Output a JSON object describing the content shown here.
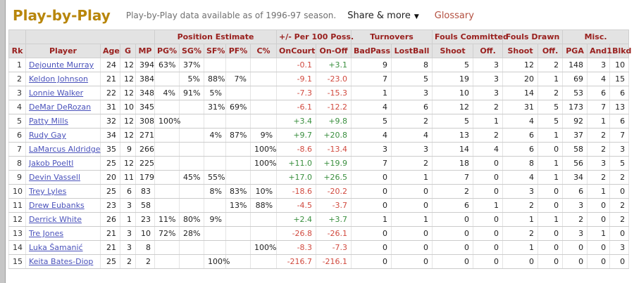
{
  "page": {
    "title": "Play-by-Play",
    "subtitle": "Play-by-Play data available as of 1996-97 season.",
    "share_label": "Share & more",
    "share_caret": "▼",
    "glossary_label": "Glossary"
  },
  "colors": {
    "title_gold": "#B8860B",
    "header_maroon": "#99201e",
    "positive_green": "#3a8f3f",
    "negative_red": "#d14a3f",
    "player_link_blue": "#4a52bb",
    "header_bg": "#e3e3e3"
  },
  "table": {
    "group_headers": [
      {
        "label": "",
        "colspan": 1
      },
      {
        "label": "",
        "colspan": 4
      },
      {
        "label": "Position Estimate",
        "colspan": 5
      },
      {
        "label": "+/- Per 100 Poss.",
        "colspan": 2
      },
      {
        "label": "Turnovers",
        "colspan": 2
      },
      {
        "label": "Fouls Committed",
        "colspan": 2
      },
      {
        "label": "Fouls Drawn",
        "colspan": 2
      },
      {
        "label": "Misc.",
        "colspan": 3
      }
    ],
    "columns": [
      "Rk",
      "Player",
      "Age",
      "G",
      "MP",
      "PG%",
      "SG%",
      "SF%",
      "PF%",
      "C%",
      "OnCourt",
      "On-Off",
      "BadPass",
      "LostBall",
      "Shoot",
      "Off.",
      "Shoot",
      "Off.",
      "PGA",
      "And1",
      "Blkd"
    ],
    "rows": [
      {
        "rk": "1",
        "player": "Dejounte Murray",
        "cells": [
          "24",
          "12",
          "394",
          "63%",
          "37%",
          "",
          "",
          "",
          "-0.1",
          "+3.1",
          "9",
          "8",
          "5",
          "3",
          "12",
          "2",
          "148",
          "3",
          "10"
        ]
      },
      {
        "rk": "2",
        "player": "Keldon Johnson",
        "cells": [
          "21",
          "12",
          "384",
          "",
          "5%",
          "88%",
          "7%",
          "",
          "-9.1",
          "-23.0",
          "7",
          "5",
          "19",
          "3",
          "20",
          "1",
          "69",
          "4",
          "15"
        ]
      },
      {
        "rk": "3",
        "player": "Lonnie Walker",
        "cells": [
          "22",
          "12",
          "348",
          "4%",
          "91%",
          "5%",
          "",
          "",
          "-7.3",
          "-15.3",
          "1",
          "3",
          "10",
          "3",
          "14",
          "2",
          "53",
          "6",
          "6"
        ]
      },
      {
        "rk": "4",
        "player": "DeMar DeRozan",
        "cells": [
          "31",
          "10",
          "345",
          "",
          "",
          "31%",
          "69%",
          "",
          "-6.1",
          "-12.2",
          "4",
          "6",
          "12",
          "2",
          "31",
          "5",
          "173",
          "7",
          "13"
        ]
      },
      {
        "rk": "5",
        "player": "Patty Mills",
        "cells": [
          "32",
          "12",
          "308",
          "100%",
          "",
          "",
          "",
          "",
          "+3.4",
          "+9.8",
          "5",
          "2",
          "5",
          "1",
          "4",
          "5",
          "92",
          "1",
          "6"
        ]
      },
      {
        "rk": "6",
        "player": "Rudy Gay",
        "cells": [
          "34",
          "12",
          "271",
          "",
          "",
          "4%",
          "87%",
          "9%",
          "+9.7",
          "+20.8",
          "4",
          "4",
          "13",
          "2",
          "6",
          "1",
          "37",
          "2",
          "7"
        ]
      },
      {
        "rk": "7",
        "player": "LaMarcus Aldridge",
        "cells": [
          "35",
          "9",
          "266",
          "",
          "",
          "",
          "",
          "100%",
          "-8.6",
          "-13.4",
          "3",
          "3",
          "14",
          "4",
          "6",
          "0",
          "58",
          "2",
          "3"
        ]
      },
      {
        "rk": "8",
        "player": "Jakob Poeltl",
        "cells": [
          "25",
          "12",
          "225",
          "",
          "",
          "",
          "",
          "100%",
          "+11.0",
          "+19.9",
          "7",
          "2",
          "18",
          "0",
          "8",
          "1",
          "56",
          "3",
          "5"
        ]
      },
      {
        "rk": "9",
        "player": "Devin Vassell",
        "cells": [
          "20",
          "11",
          "179",
          "",
          "45%",
          "55%",
          "",
          "",
          "+17.0",
          "+26.5",
          "0",
          "1",
          "7",
          "0",
          "4",
          "1",
          "34",
          "2",
          "2"
        ]
      },
      {
        "rk": "10",
        "player": "Trey Lyles",
        "cells": [
          "25",
          "6",
          "83",
          "",
          "",
          "8%",
          "83%",
          "10%",
          "-18.6",
          "-20.2",
          "0",
          "0",
          "2",
          "0",
          "3",
          "0",
          "6",
          "1",
          "0"
        ]
      },
      {
        "rk": "11",
        "player": "Drew Eubanks",
        "cells": [
          "23",
          "3",
          "58",
          "",
          "",
          "",
          "13%",
          "88%",
          "-4.5",
          "-3.7",
          "0",
          "0",
          "6",
          "1",
          "2",
          "0",
          "3",
          "0",
          "2"
        ]
      },
      {
        "rk": "12",
        "player": "Derrick White",
        "cells": [
          "26",
          "1",
          "23",
          "11%",
          "80%",
          "9%",
          "",
          "",
          "+2.4",
          "+3.7",
          "1",
          "1",
          "0",
          "0",
          "1",
          "1",
          "2",
          "0",
          "2"
        ]
      },
      {
        "rk": "13",
        "player": "Tre Jones",
        "cells": [
          "21",
          "3",
          "10",
          "72%",
          "28%",
          "",
          "",
          "",
          "-26.8",
          "-26.1",
          "0",
          "0",
          "0",
          "0",
          "2",
          "0",
          "3",
          "1",
          "0"
        ]
      },
      {
        "rk": "14",
        "player": "Luka Šamanić",
        "cells": [
          "21",
          "3",
          "8",
          "",
          "",
          "",
          "",
          "100%",
          "-8.3",
          "-7.3",
          "0",
          "0",
          "0",
          "0",
          "1",
          "0",
          "0",
          "0",
          "3"
        ]
      },
      {
        "rk": "15",
        "player": "Keita Bates-Diop",
        "cells": [
          "25",
          "2",
          "2",
          "",
          "",
          "100%",
          "",
          "",
          "-216.7",
          "-216.1",
          "0",
          "0",
          "0",
          "0",
          "0",
          "0",
          "0",
          "0",
          "0"
        ]
      }
    ]
  }
}
